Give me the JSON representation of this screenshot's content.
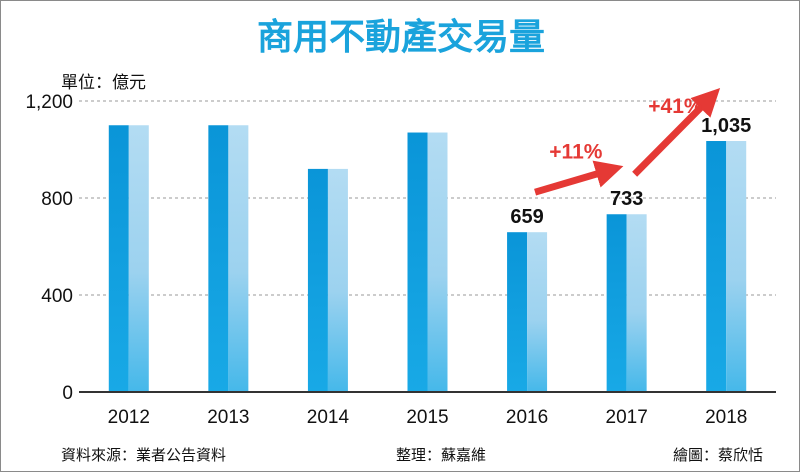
{
  "chart_data": {
    "type": "bar",
    "title": "商用不動產交易量",
    "unit_label": "單位：億元",
    "categories": [
      "2012",
      "2013",
      "2014",
      "2015",
      "2016",
      "2017",
      "2018"
    ],
    "values": [
      1100,
      1100,
      920,
      1070,
      659,
      733,
      1035
    ],
    "data_labels": [
      {
        "index": 4,
        "text": "659"
      },
      {
        "index": 5,
        "text": "733"
      },
      {
        "index": 6,
        "text": "1,035"
      }
    ],
    "annotations": [
      {
        "from_index": 4,
        "to_index": 5,
        "text": "+11%"
      },
      {
        "from_index": 5,
        "to_index": 6,
        "text": "+41%"
      }
    ],
    "y_ticks": [
      {
        "value": 0,
        "label": "0"
      },
      {
        "value": 400,
        "label": "400"
      },
      {
        "value": 800,
        "label": "800"
      },
      {
        "value": 1200,
        "label": "1,200"
      }
    ],
    "ylim": [
      0,
      1200
    ],
    "grid": true,
    "colors": {
      "bar_dark": "#0b9be0",
      "bar_light": "#b5def5",
      "annotation": "#e53935",
      "title": "#1aa3dc"
    }
  },
  "footer": {
    "source": "資料來源：業者公告資料",
    "editor": "整理：蘇嘉維",
    "illustrator": "繪圖：蔡欣恬"
  }
}
